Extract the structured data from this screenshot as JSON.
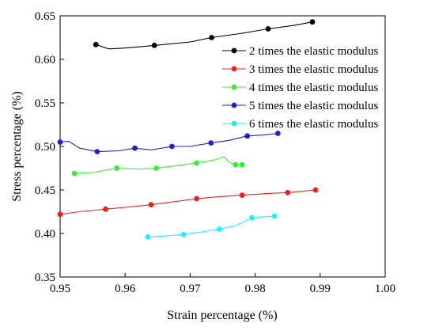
{
  "chart_data": {
    "type": "line",
    "xlabel": "Strain percentage (%)",
    "ylabel": "Stress percentage (%)",
    "xlim": [
      0.95,
      1.0
    ],
    "ylim": [
      0.35,
      0.65
    ],
    "xticks": [
      0.95,
      0.96,
      0.97,
      0.98,
      0.99,
      1.0
    ],
    "xtick_labels": [
      "0.95",
      "0.96",
      "0.97",
      "0.98",
      "0.99",
      "1.00"
    ],
    "yticks": [
      0.35,
      0.4,
      0.45,
      0.5,
      0.55,
      0.6,
      0.65
    ],
    "ytick_labels": [
      "0.35",
      "0.40",
      "0.45",
      "0.50",
      "0.55",
      "0.60",
      "0.65"
    ],
    "legend_position": "top-right",
    "grid": false,
    "series": [
      {
        "name": "2 times the elastic modulus",
        "color": "#000000",
        "x": [
          0.9555,
          0.9575,
          0.96,
          0.9645,
          0.97,
          0.9733,
          0.978,
          0.982,
          0.986,
          0.9888
        ],
        "y": [
          0.617,
          0.612,
          0.613,
          0.616,
          0.62,
          0.625,
          0.63,
          0.635,
          0.639,
          0.643
        ],
        "markers_x": [
          0.9555,
          0.9645,
          0.9733,
          0.982,
          0.9888
        ],
        "markers_y": [
          0.617,
          0.616,
          0.625,
          0.635,
          0.643
        ]
      },
      {
        "name": "3 times the elastic modulus",
        "color": "#e8211a",
        "x": [
          0.95,
          0.953,
          0.957,
          0.96,
          0.964,
          0.967,
          0.971,
          0.974,
          0.978,
          0.982,
          0.985,
          0.9893
        ],
        "y": [
          0.422,
          0.425,
          0.428,
          0.43,
          0.433,
          0.436,
          0.44,
          0.442,
          0.444,
          0.446,
          0.447,
          0.45
        ],
        "markers_x": [
          0.95,
          0.957,
          0.964,
          0.971,
          0.978,
          0.985,
          0.9893
        ],
        "markers_y": [
          0.422,
          0.428,
          0.433,
          0.44,
          0.444,
          0.447,
          0.45
        ]
      },
      {
        "name": "4 times the elastic modulus",
        "color": "#33ee33",
        "x": [
          0.9522,
          0.955,
          0.9587,
          0.962,
          0.9648,
          0.968,
          0.971,
          0.9735,
          0.9752,
          0.976,
          0.977,
          0.978
        ],
        "y": [
          0.469,
          0.47,
          0.475,
          0.474,
          0.475,
          0.478,
          0.481,
          0.484,
          0.488,
          0.482,
          0.479,
          0.479
        ],
        "markers_x": [
          0.9522,
          0.9587,
          0.9648,
          0.971,
          0.977,
          0.978
        ],
        "markers_y": [
          0.469,
          0.475,
          0.475,
          0.481,
          0.479,
          0.479
        ]
      },
      {
        "name": "5 times the elastic modulus",
        "color": "#1f1fd6",
        "x": [
          0.95,
          0.9513,
          0.953,
          0.9557,
          0.959,
          0.9615,
          0.964,
          0.9672,
          0.97,
          0.9732,
          0.976,
          0.9788,
          0.981,
          0.9835
        ],
        "y": [
          0.505,
          0.506,
          0.498,
          0.494,
          0.495,
          0.498,
          0.496,
          0.5,
          0.5,
          0.504,
          0.507,
          0.512,
          0.513,
          0.515
        ],
        "markers_x": [
          0.95,
          0.9557,
          0.9615,
          0.9672,
          0.9732,
          0.9788,
          0.9835
        ],
        "markers_y": [
          0.505,
          0.494,
          0.498,
          0.5,
          0.504,
          0.512,
          0.515
        ]
      },
      {
        "name": "6 times the elastic modulus",
        "color": "#22f0f0",
        "x": [
          0.9635,
          0.966,
          0.969,
          0.972,
          0.9745,
          0.977,
          0.9795,
          0.9812,
          0.983
        ],
        "y": [
          0.396,
          0.397,
          0.399,
          0.402,
          0.405,
          0.409,
          0.418,
          0.419,
          0.42
        ],
        "markers_x": [
          0.9635,
          0.969,
          0.9745,
          0.9795,
          0.983
        ],
        "markers_y": [
          0.396,
          0.399,
          0.405,
          0.418,
          0.42
        ]
      }
    ]
  }
}
